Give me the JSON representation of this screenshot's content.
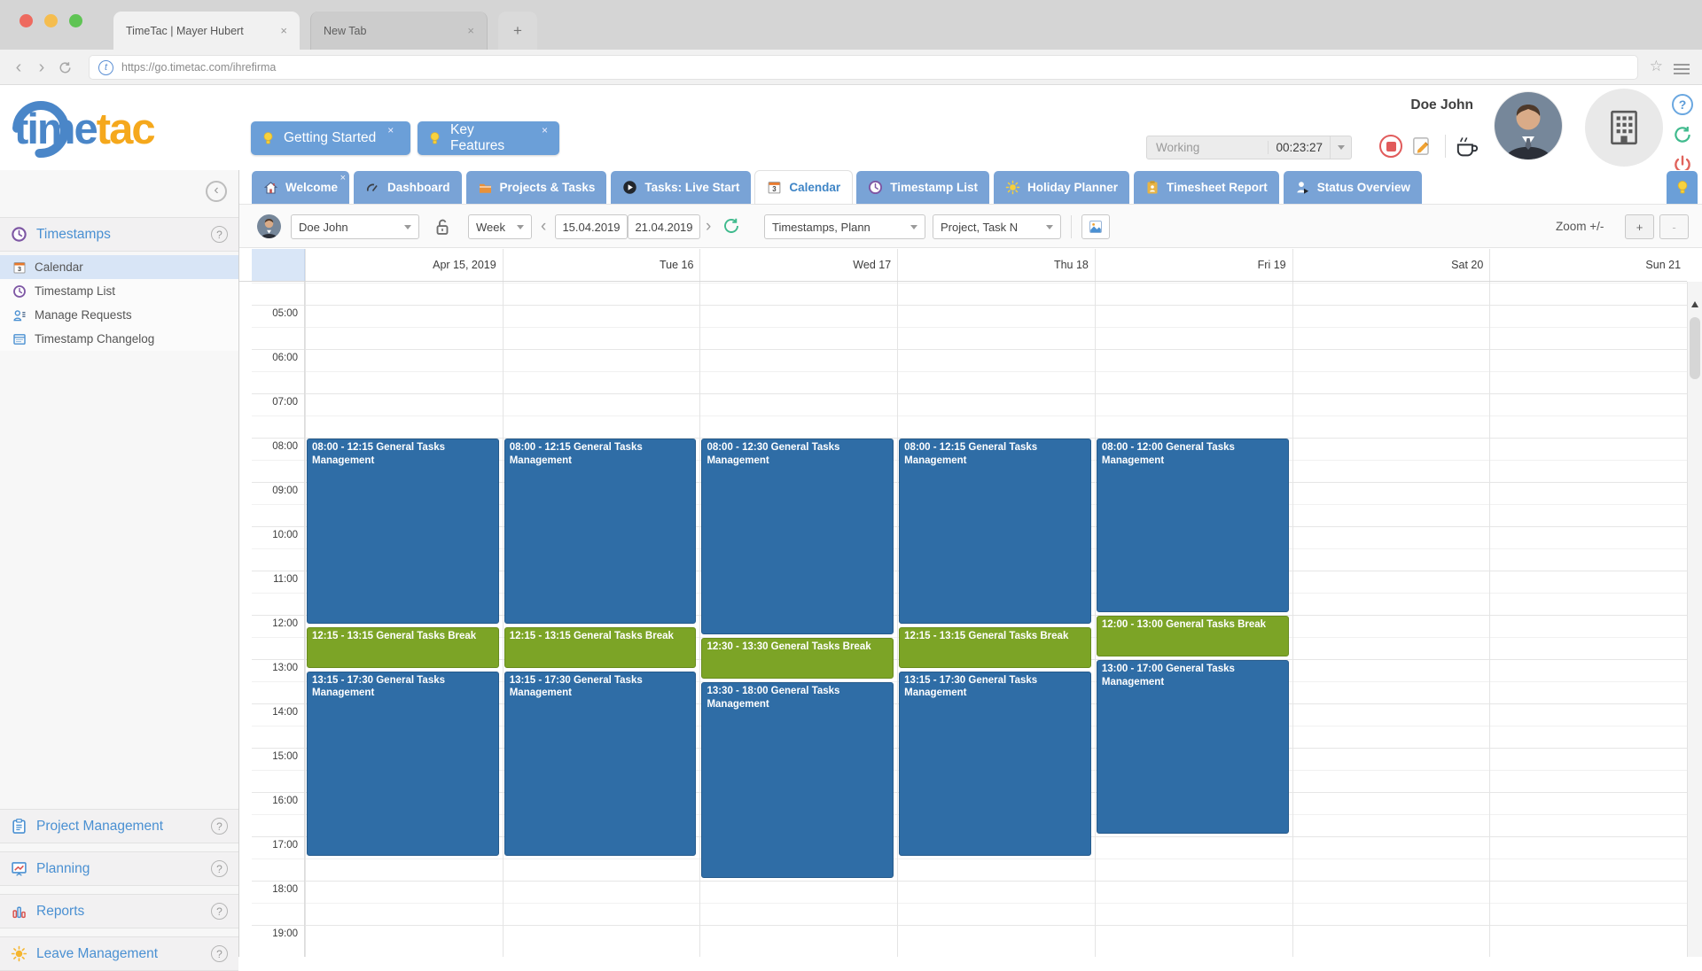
{
  "browser": {
    "tab1": "TimeTac | Mayer Hubert",
    "tab2": "New Tab",
    "url": "https://go.timetac.com/ihrefirma",
    "favicon_letter": "t"
  },
  "glyphs": {
    "close": "×",
    "plus": "+",
    "minus": "-",
    "chevron_left": "‹",
    "chevron_right": "›",
    "help": "?",
    "star": "☆",
    "calendar_day": "3"
  },
  "header": {
    "logo_time": "time",
    "logo_tac": "tac",
    "promo1": "Getting Started",
    "promo2": "Key Features",
    "user_name": "Doe John",
    "timer_label": "Working",
    "timer_value": "00:23:27"
  },
  "tabs": [
    {
      "label": "Welcome"
    },
    {
      "label": "Dashboard"
    },
    {
      "label": "Projects & Tasks"
    },
    {
      "label": "Tasks: Live Start"
    },
    {
      "label": "Calendar",
      "active": true
    },
    {
      "label": "Timestamp List"
    },
    {
      "label": "Holiday Planner"
    },
    {
      "label": "Timesheet Report"
    },
    {
      "label": "Status Overview"
    }
  ],
  "toolbar": {
    "user_select": "Doe John",
    "view_select": "Week",
    "date_from": "15.04.2019",
    "date_to": "21.04.2019",
    "filter_type": "Timestamps, Plann",
    "filter_project": "Project, Task N",
    "zoom_label": "Zoom +/-"
  },
  "sidebar": {
    "section_title": "Timestamps",
    "items": [
      {
        "label": "Calendar",
        "selected": true
      },
      {
        "label": "Timestamp List"
      },
      {
        "label": "Manage Requests"
      },
      {
        "label": "Timestamp Changelog"
      }
    ],
    "bottom_sections": [
      {
        "label": "Project Management"
      },
      {
        "label": "Planning"
      },
      {
        "label": "Reports"
      },
      {
        "label": "Leave Management"
      }
    ]
  },
  "calendar": {
    "days": [
      "Apr 15, 2019",
      "Tue 16",
      "Wed 17",
      "Thu 18",
      "Fri 19",
      "Sat 20",
      "Sun 21"
    ],
    "times": [
      "05:00",
      "06:00",
      "07:00",
      "08:00",
      "09:00",
      "10:00",
      "11:00",
      "12:00",
      "13:00",
      "14:00",
      "15:00",
      "16:00",
      "17:00",
      "18:00",
      "19:00"
    ],
    "events": [
      {
        "day": 0,
        "start": "08:00",
        "end": "12:15",
        "label": "08:00 - 12:15 General Tasks Management",
        "type": "work"
      },
      {
        "day": 0,
        "start": "12:15",
        "end": "13:15",
        "label": "12:15 - 13:15 General Tasks Break",
        "type": "break"
      },
      {
        "day": 0,
        "start": "13:15",
        "end": "17:30",
        "label": "13:15 - 17:30 General Tasks Management",
        "type": "work"
      },
      {
        "day": 1,
        "start": "08:00",
        "end": "12:15",
        "label": "08:00 - 12:15 General Tasks Management",
        "type": "work"
      },
      {
        "day": 1,
        "start": "12:15",
        "end": "13:15",
        "label": "12:15 - 13:15 General Tasks Break",
        "type": "break"
      },
      {
        "day": 1,
        "start": "13:15",
        "end": "17:30",
        "label": "13:15 - 17:30 General Tasks Management",
        "type": "work"
      },
      {
        "day": 2,
        "start": "08:00",
        "end": "12:30",
        "label": "08:00 - 12:30 General Tasks Management",
        "type": "work"
      },
      {
        "day": 2,
        "start": "12:30",
        "end": "13:30",
        "label": "12:30 - 13:30 General Tasks Break",
        "type": "break"
      },
      {
        "day": 2,
        "start": "13:30",
        "end": "18:00",
        "label": "13:30 - 18:00 General Tasks Management",
        "type": "work"
      },
      {
        "day": 3,
        "start": "08:00",
        "end": "12:15",
        "label": "08:00 - 12:15 General Tasks Management",
        "type": "work"
      },
      {
        "day": 3,
        "start": "12:15",
        "end": "13:15",
        "label": "12:15 - 13:15 General Tasks Break",
        "type": "break"
      },
      {
        "day": 3,
        "start": "13:15",
        "end": "17:30",
        "label": "13:15 - 17:30 General Tasks Management",
        "type": "work"
      },
      {
        "day": 4,
        "start": "08:00",
        "end": "12:00",
        "label": "08:00 - 12:00 General Tasks Management",
        "type": "work"
      },
      {
        "day": 4,
        "start": "12:00",
        "end": "13:00",
        "label": "12:00 - 13:00 General Tasks Break",
        "type": "break"
      },
      {
        "day": 4,
        "start": "13:00",
        "end": "17:00",
        "label": "13:00 - 17:00 General Tasks Management",
        "type": "work"
      }
    ]
  },
  "colors": {
    "event_work": "#2f6da6",
    "event_work_border": "#265b8c",
    "event_break": "#7ca426",
    "event_break_border": "#688c1e",
    "tab_blue": "#79a3d6",
    "accent_blue": "#4a90d2",
    "logo_blue": "#4a86c8",
    "logo_orange": "#f5a81c"
  }
}
